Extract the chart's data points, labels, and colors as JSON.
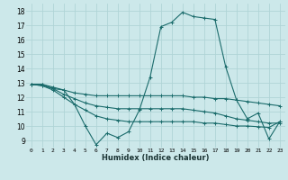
{
  "title": "",
  "xlabel": "Humidex (Indice chaleur)",
  "bg_color": "#cce8ea",
  "grid_color": "#b0d4d6",
  "line_color": "#1a6b6b",
  "xlim": [
    -0.5,
    23.5
  ],
  "ylim": [
    8.5,
    18.5
  ],
  "xticks": [
    0,
    1,
    2,
    3,
    4,
    5,
    6,
    7,
    8,
    9,
    10,
    11,
    12,
    13,
    14,
    15,
    16,
    17,
    18,
    19,
    20,
    21,
    22,
    23
  ],
  "yticks": [
    9,
    10,
    11,
    12,
    13,
    14,
    15,
    16,
    17,
    18
  ],
  "series": [
    {
      "x": [
        0,
        1,
        2,
        3,
        4,
        5,
        6,
        7,
        8,
        9,
        10,
        11,
        12,
        13,
        14,
        15,
        16,
        17,
        18,
        19,
        20,
        21,
        22,
        23
      ],
      "y": [
        12.9,
        12.9,
        12.6,
        12.5,
        11.5,
        10.0,
        8.7,
        9.5,
        9.2,
        9.6,
        11.1,
        13.4,
        16.9,
        17.2,
        17.9,
        17.6,
        17.5,
        17.4,
        14.1,
        11.8,
        10.5,
        10.9,
        9.1,
        10.3
      ]
    },
    {
      "x": [
        0,
        1,
        2,
        3,
        4,
        5,
        6,
        7,
        8,
        9,
        10,
        11,
        12,
        13,
        14,
        15,
        16,
        17,
        18,
        19,
        20,
        21,
        22,
        23
      ],
      "y": [
        12.9,
        12.9,
        12.7,
        12.5,
        12.3,
        12.2,
        12.1,
        12.1,
        12.1,
        12.1,
        12.1,
        12.1,
        12.1,
        12.1,
        12.1,
        12.0,
        12.0,
        11.9,
        11.9,
        11.8,
        11.7,
        11.6,
        11.5,
        11.4
      ]
    },
    {
      "x": [
        0,
        1,
        2,
        3,
        4,
        5,
        6,
        7,
        8,
        9,
        10,
        11,
        12,
        13,
        14,
        15,
        16,
        17,
        18,
        19,
        20,
        21,
        22,
        23
      ],
      "y": [
        12.9,
        12.8,
        12.6,
        12.2,
        11.9,
        11.6,
        11.4,
        11.3,
        11.2,
        11.2,
        11.2,
        11.2,
        11.2,
        11.2,
        11.2,
        11.1,
        11.0,
        10.9,
        10.7,
        10.5,
        10.4,
        10.3,
        10.2,
        10.2
      ]
    },
    {
      "x": [
        0,
        1,
        2,
        3,
        4,
        5,
        6,
        7,
        8,
        9,
        10,
        11,
        12,
        13,
        14,
        15,
        16,
        17,
        18,
        19,
        20,
        21,
        22,
        23
      ],
      "y": [
        12.9,
        12.8,
        12.5,
        12.0,
        11.5,
        11.1,
        10.7,
        10.5,
        10.4,
        10.3,
        10.3,
        10.3,
        10.3,
        10.3,
        10.3,
        10.3,
        10.2,
        10.2,
        10.1,
        10.0,
        10.0,
        9.95,
        9.9,
        10.3
      ]
    }
  ]
}
